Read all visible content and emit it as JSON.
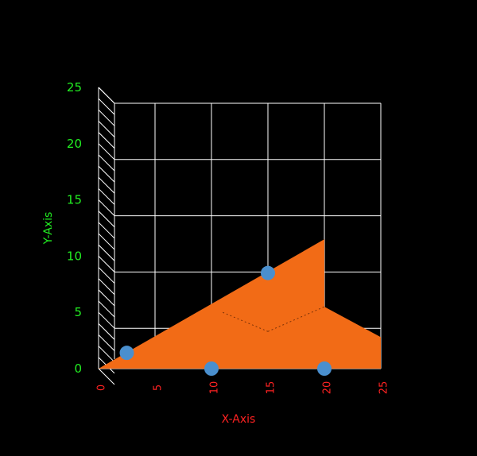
{
  "chart_data": {
    "type": "area",
    "projection": "3d",
    "background": "#000000",
    "grid": true,
    "xlabel": "X-Axis",
    "ylabel": "Y-Axis",
    "xlim": [
      0,
      25
    ],
    "ylim": [
      0,
      25
    ],
    "x_ticks": [
      "0",
      "5",
      "10",
      "15",
      "20",
      "25"
    ],
    "y_ticks": [
      "0",
      "5",
      "10",
      "15",
      "20",
      "25"
    ],
    "colors": {
      "x_axis_text": "#ff2222",
      "y_axis_text": "#22ee22",
      "grid": "#ffffff",
      "surface": "#f26b16",
      "points": "#4a8fce"
    },
    "surface": {
      "outline": [
        {
          "x": 0,
          "y": 0
        },
        {
          "x": 20,
          "y": 11.5
        },
        {
          "x": 20,
          "y": 5.5
        },
        {
          "x": 25,
          "y": 2.8
        },
        {
          "x": 25,
          "y": 0
        }
      ]
    },
    "points": [
      {
        "x": 2.5,
        "y": 1.4
      },
      {
        "x": 10,
        "y": 0
      },
      {
        "x": 15,
        "y": 8.5
      },
      {
        "x": 20,
        "y": 0
      }
    ]
  }
}
